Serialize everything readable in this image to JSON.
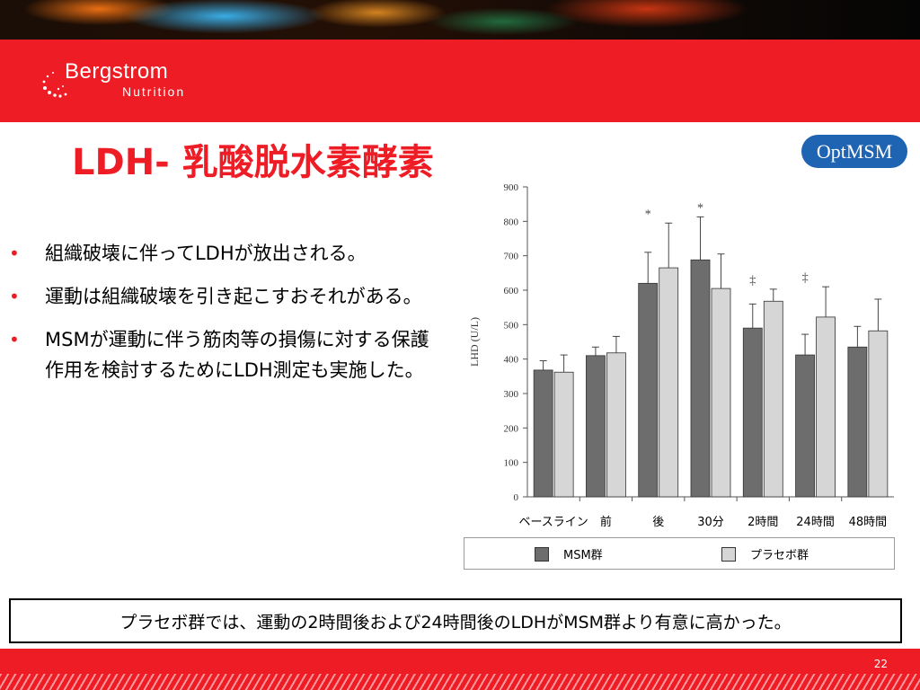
{
  "brand": {
    "name": "Bergstrom",
    "sub": "Nutrition"
  },
  "title": "LDH- 乳酸脱水素酵素",
  "badge": "OptMSM",
  "bullets": [
    "組織破壊に伴ってLDHが放出される。",
    "運動は組織破壊を引き起こすおそれがある。",
    "MSMが運動に伴う筋肉等の損傷に対する保護作用を検討するためにLDH測定も実施した。"
  ],
  "conclusion": "プラセボ群では、運動の2時間後および24時間後のLDHがMSM群より有意に高かった。",
  "page_number": "22",
  "colors": {
    "accent_red": "#ee1c24",
    "msm_bar": "#6d6d6d",
    "placebo_bar": "#d6d6d6",
    "badge_blue": "#1f63b3"
  },
  "chart_data": {
    "type": "bar",
    "ylabel": "LHD (U/L)",
    "ylim": [
      0,
      900
    ],
    "yticks": [
      0,
      100,
      200,
      300,
      400,
      500,
      600,
      700,
      800,
      900
    ],
    "categories": [
      "ベースライン",
      "前",
      "後",
      "30分",
      "2時間",
      "24時間",
      "48時間"
    ],
    "series": [
      {
        "name": "MSM群",
        "values": [
          368,
          410,
          620,
          688,
          490,
          412,
          435
        ],
        "errors": [
          27,
          25,
          90,
          125,
          70,
          60,
          60
        ]
      },
      {
        "name": "プラセボ群",
        "values": [
          362,
          418,
          665,
          605,
          568,
          522,
          482
        ],
        "errors": [
          50,
          48,
          130,
          100,
          35,
          88,
          92
        ]
      }
    ],
    "annotations": [
      {
        "category": "後",
        "symbol": "*"
      },
      {
        "category": "30分",
        "symbol": "*"
      },
      {
        "category": "2時間",
        "symbol": "‡"
      },
      {
        "category": "24時間",
        "symbol": "‡"
      }
    ],
    "legend_position": "bottom",
    "grid": false
  }
}
